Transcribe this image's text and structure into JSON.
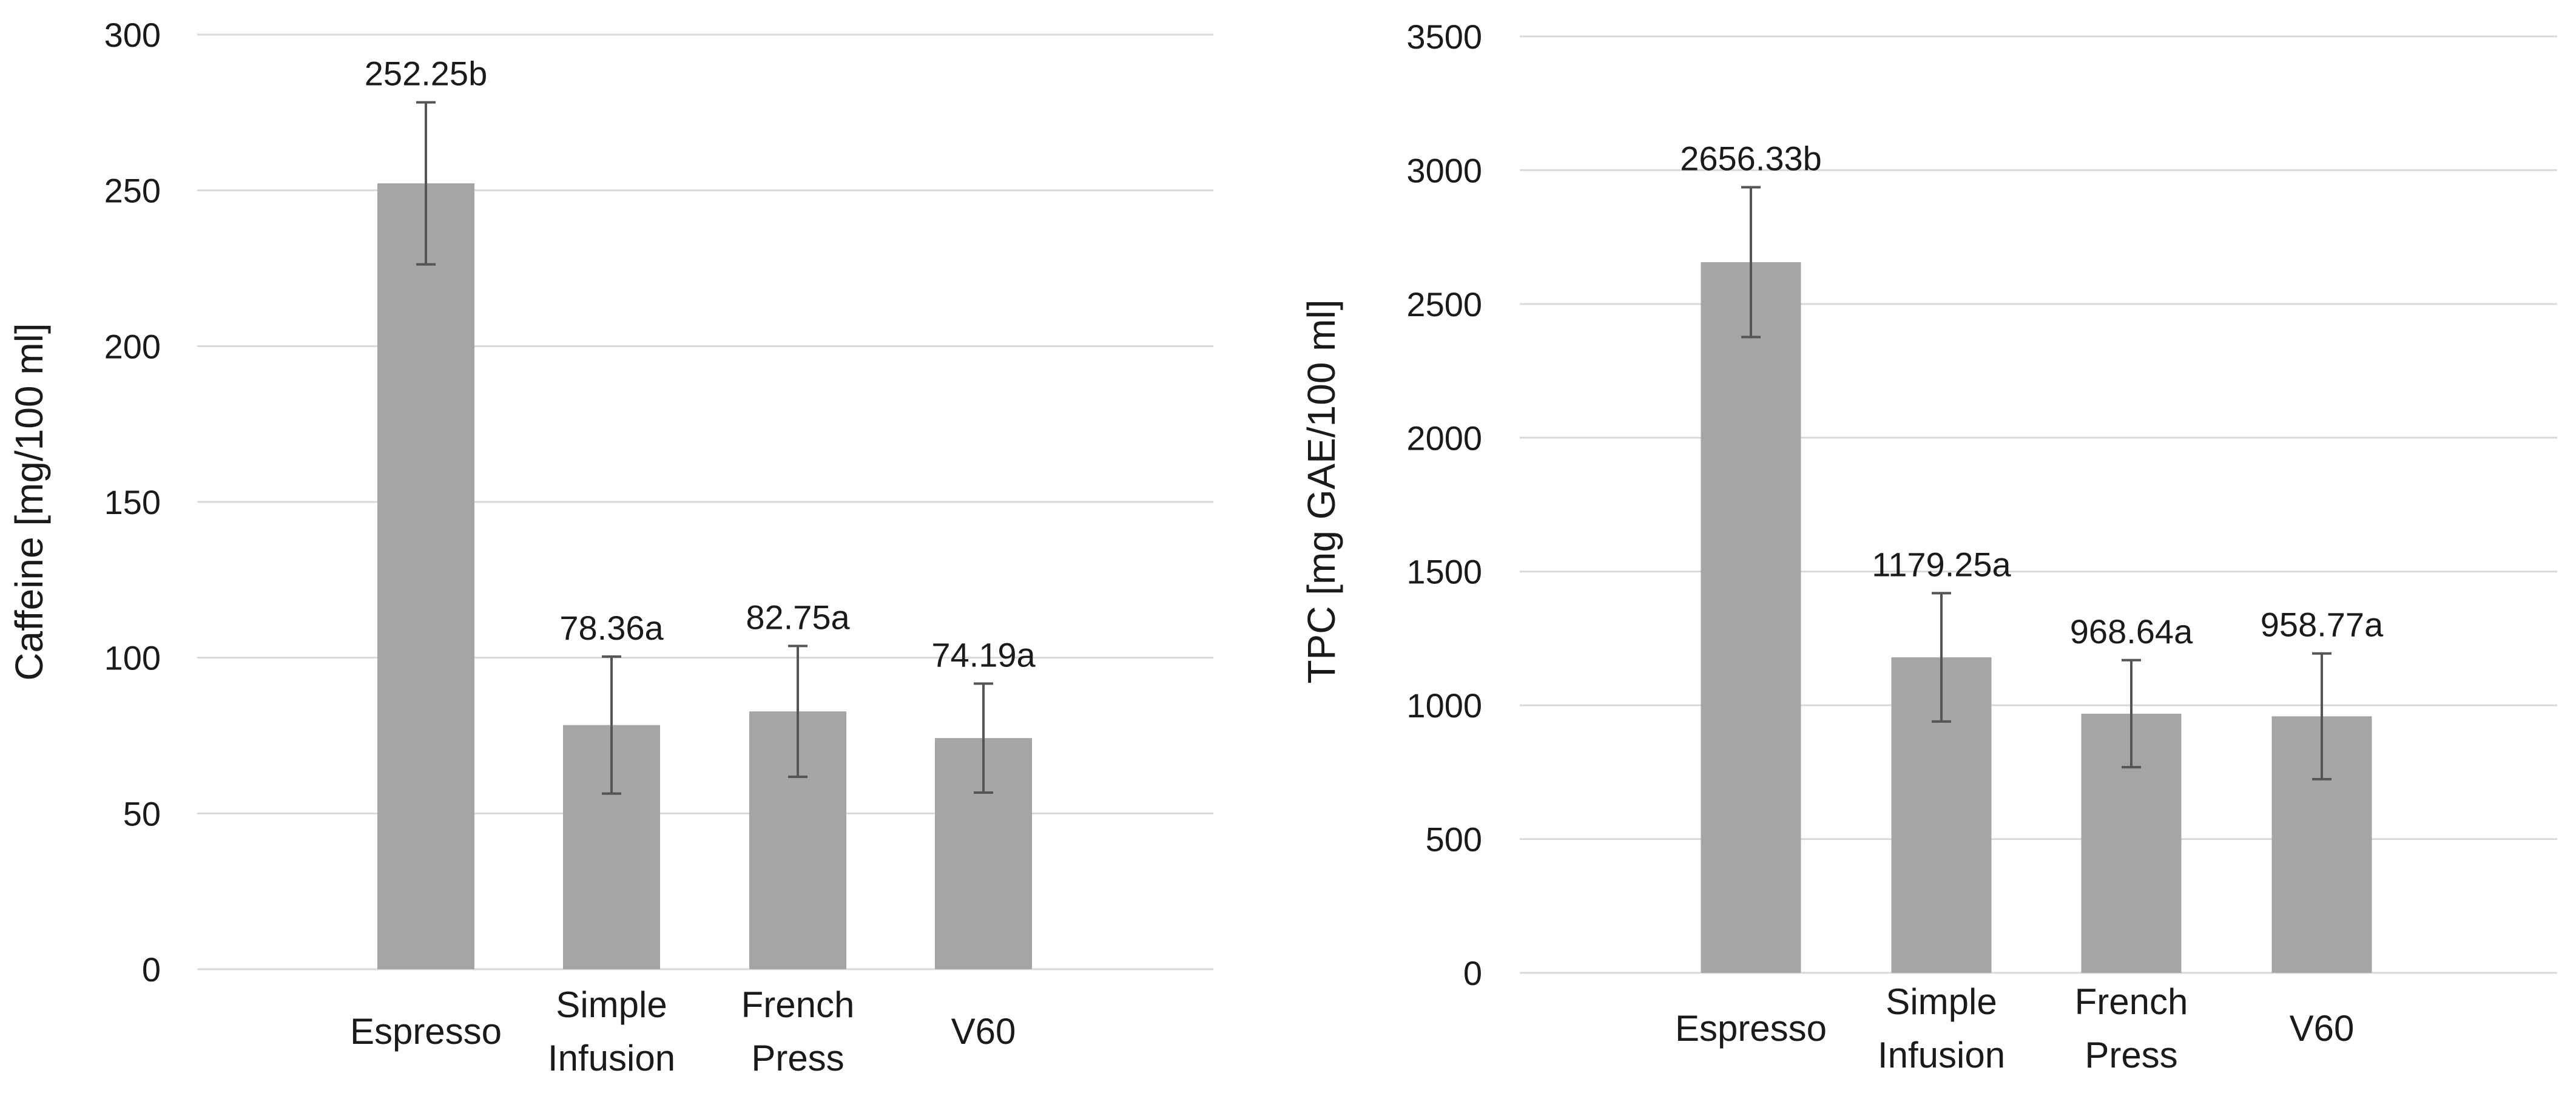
{
  "chart_data": [
    {
      "type": "bar",
      "categories": [
        [
          "Espresso"
        ],
        [
          "Simple",
          "Infusion"
        ],
        [
          "French",
          "Press"
        ],
        [
          "V60"
        ]
      ],
      "values": [
        252.25,
        78.36,
        82.75,
        74.19
      ],
      "errors": [
        26,
        22,
        21,
        17.5
      ],
      "data_labels": [
        "252.25b",
        "78.36a",
        "82.75a",
        "74.19a"
      ],
      "ylabel": "Caffeine [mg/100 ml]",
      "ylim": [
        0,
        300
      ],
      "yticks": [
        0,
        50,
        100,
        150,
        200,
        250,
        300
      ],
      "grid": true,
      "bar_color": "#a5a5a5"
    },
    {
      "type": "bar",
      "categories": [
        [
          "Espresso"
        ],
        [
          "Simple",
          "Infusion"
        ],
        [
          "French",
          "Press"
        ],
        [
          "V60"
        ]
      ],
      "values": [
        2656.33,
        1179.25,
        968.64,
        958.77
      ],
      "errors": [
        280,
        240,
        200,
        235
      ],
      "data_labels": [
        "2656.33b",
        "1179.25a",
        "968.64a",
        "958.77a"
      ],
      "ylabel": "TPC [mg GAE/100 ml]",
      "ylim": [
        0,
        3500
      ],
      "yticks": [
        0,
        500,
        1000,
        1500,
        2000,
        2500,
        3000,
        3500
      ],
      "grid": true,
      "bar_color": "#a5a5a5"
    }
  ]
}
